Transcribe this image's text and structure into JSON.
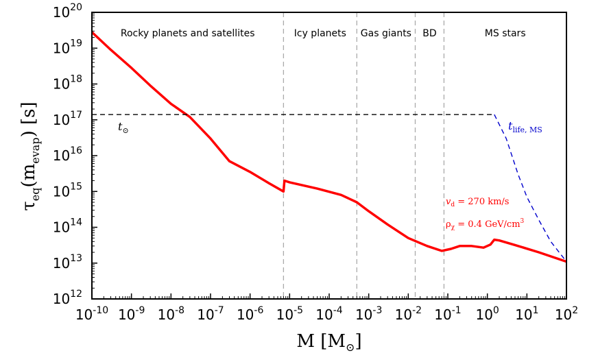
{
  "chart_data": {
    "type": "line",
    "xscale": "log",
    "yscale": "log",
    "xlim": [
      1e-10,
      100
    ],
    "ylim": [
      1000000000000.0,
      1e+20
    ],
    "xlabel": "M [M⊙]",
    "ylabel": "τeq(mevap) [s]",
    "x_ticks": [
      "10-10",
      "10-9",
      "10-8",
      "10-7",
      "10-6",
      "10-5",
      "10-4",
      "10-3",
      "10-2",
      "10-1",
      "100",
      "101",
      "102"
    ],
    "y_ticks": [
      "1012",
      "1013",
      "1014",
      "1015",
      "1016",
      "1017",
      "1018",
      "1019",
      "1020"
    ],
    "regions": [
      {
        "label": "Rocky planets and satellites",
        "x_from": 1e-10,
        "x_to": 7e-06
      },
      {
        "label": "Icy planets",
        "x_from": 7e-06,
        "x_to": 0.0005
      },
      {
        "label": "Gas giants",
        "x_from": 0.0005,
        "x_to": 0.015
      },
      {
        "label": "BD",
        "x_from": 0.015,
        "x_to": 0.08
      },
      {
        "label": "MS stars",
        "x_from": 0.08,
        "x_to": 100
      }
    ],
    "series": [
      {
        "name": "tau_eq",
        "color": "#ff0000",
        "style": "solid",
        "points": [
          [
            1e-10,
            2.8e+19
          ],
          [
            3e-10,
            9e+18
          ],
          [
            1e-09,
            2.8e+18
          ],
          [
            3e-09,
            9e+17
          ],
          [
            1e-08,
            2.8e+17
          ],
          [
            3e-08,
            1.2e+17
          ],
          [
            1e-07,
            3e+16
          ],
          [
            3e-07,
            7000000000000000.0
          ],
          [
            1e-06,
            3500000000000000.0
          ],
          [
            3e-06,
            1700000000000000.0
          ],
          [
            7e-06,
            1000000000000000.0
          ],
          [
            7.4e-06,
            2000000000000000.0
          ],
          [
            1e-05,
            1800000000000000.0
          ],
          [
            5e-05,
            1200000000000000.0
          ],
          [
            0.0002,
            800000000000000.0
          ],
          [
            0.0005,
            500000000000000.0
          ],
          [
            0.001,
            280000000000000.0
          ],
          [
            0.003,
            120000000000000.0
          ],
          [
            0.01,
            50000000000000.0
          ],
          [
            0.03,
            30000000000000.0
          ],
          [
            0.07,
            22000000000000.0
          ],
          [
            0.12,
            25000000000000.0
          ],
          [
            0.2,
            30000000000000.0
          ],
          [
            0.4,
            30000000000000.0
          ],
          [
            0.8,
            27000000000000.0
          ],
          [
            1.2,
            33000000000000.0
          ],
          [
            1.5,
            45000000000000.0
          ],
          [
            2,
            43000000000000.0
          ],
          [
            5,
            32000000000000.0
          ],
          [
            20,
            20000000000000.0
          ],
          [
            100,
            11000000000000.0
          ]
        ]
      },
      {
        "name": "t_sun",
        "label": "t⊙",
        "color": "#000000",
        "style": "dashed",
        "points": [
          [
            1e-10,
            1.4e+17
          ],
          [
            1.5,
            1.4e+17
          ]
        ]
      },
      {
        "name": "t_life_MS",
        "label": "tlife, MS",
        "color": "#0000cc",
        "style": "dashed",
        "points": [
          [
            1.5,
            1.4e+17
          ],
          [
            3,
            3e+16
          ],
          [
            6,
            3000000000000000.0
          ],
          [
            10,
            700000000000000.0
          ],
          [
            20,
            160000000000000.0
          ],
          [
            40,
            40000000000000.0
          ],
          [
            100,
            11000000000000.0
          ]
        ]
      }
    ],
    "annotations": [
      {
        "text": "vd = 270 km/s",
        "color": "#ff0000"
      },
      {
        "text": "ρχ = 0.4 GeV/cm3",
        "color": "#ff0000"
      },
      {
        "text": "t⊙",
        "color": "#000000"
      },
      {
        "text": "tlife, MS",
        "color": "#0000cc"
      }
    ]
  }
}
